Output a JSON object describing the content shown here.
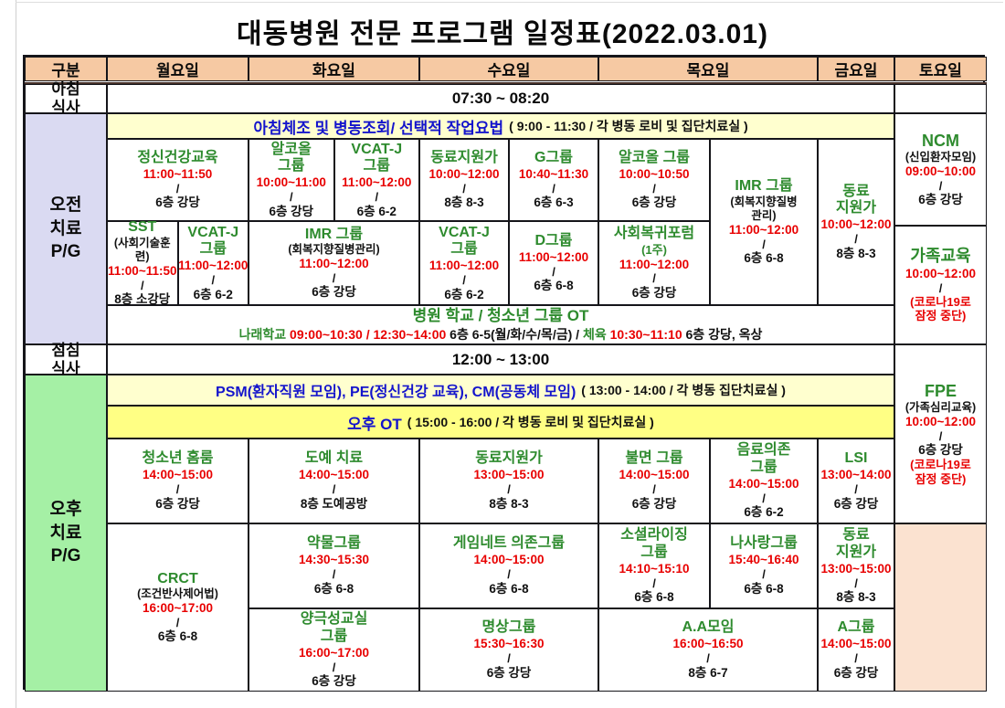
{
  "title": "대동병원 전문 프로그램 일정표(2022.03.01)",
  "header": {
    "category": "구분",
    "days": {
      "mon": "월요일",
      "tue": "화요일",
      "wed": "수요일",
      "thu": "목요일",
      "fri": "금요일",
      "sat": "토요일"
    }
  },
  "colors": {
    "program_green": "#2e8b2e",
    "time_red": "#e80000",
    "banner_blue": "#1414cc",
    "header_peach": "#f6c9a3",
    "saturday_peach": "#fbe2d0",
    "am_lavender": "#dadaf2",
    "pm_green": "#a5f0a5",
    "banner_pale_yellow": "#ffffcf",
    "ot_yellow": "#ffff84"
  },
  "meals": {
    "breakfast": {
      "label": "아침\n식사",
      "time": "07:30  ~  08:20"
    },
    "lunch": {
      "label": "점심\n식사",
      "time": "12:00  ~  13:00"
    }
  },
  "morning": {
    "label": "오전\n치료\nP/G",
    "banner_main": "아침체조 및 병동조회/ 선택적 작업요법",
    "banner_info": "( 9:00 - 11:30 / 각 병동 로비 및 집단치료실 )",
    "r1": {
      "mon": {
        "name": "정신건강교육",
        "time": "11:00~11:50",
        "loc": "6층 강당"
      },
      "tue_l": {
        "name": "알코올\n그룹",
        "time": "10:00~11:00",
        "loc": "6층 강당"
      },
      "tue_r": {
        "name": "VCAT-J\n그룹",
        "time": "11:00~12:00",
        "loc": "6층 6-2"
      },
      "wed_l": {
        "name": "동료지원가",
        "time": "10:00~12:00",
        "loc": "8층 8-3"
      },
      "wed_r": {
        "name": "G그룹",
        "time": "10:40~11:30",
        "loc": "6층 6-3"
      },
      "thu_l": {
        "name": "알코올 그룹",
        "time": "10:00~10:50",
        "loc": "6층 강당"
      },
      "thu_r": {
        "name": "IMR 그룹",
        "sub": "(회복지향질병\n관리)",
        "time": "11:00~12:00",
        "loc": "6층 6-8"
      },
      "fri": {
        "name": "동료\n지원가",
        "time": "10:00~12:00",
        "loc": "8층 8-3"
      }
    },
    "r2": {
      "mon_l": {
        "name": "SST",
        "sub": "(사회기술훈련)",
        "time": "11:00~11:50",
        "loc": "8층 소강당"
      },
      "mon_r": {
        "name": "VCAT-J\n그룹",
        "time": "11:00~12:00",
        "loc": "6층 6-2"
      },
      "tue": {
        "name": "IMR 그룹",
        "sub": "(회복지향질병관리)",
        "time": "11:00~12:00",
        "loc": "6층 강당"
      },
      "wed_l": {
        "name": "VCAT-J\n그룹",
        "time": "11:00~12:00",
        "loc": "6층 6-2"
      },
      "wed_r": {
        "name": "D그룹",
        "time": "11:00~12:00",
        "loc": "6층 6-8"
      },
      "thu_l": {
        "name": "사회복귀포럼",
        "subg": "(1주)",
        "time": "11:00~12:00",
        "loc": "6층 강당"
      }
    },
    "school": {
      "line1": "병원 학교 / 청소년 그룹 OT",
      "line2": [
        {
          "t": "나래학교 ",
          "c": "g"
        },
        {
          "t": "09:00~10:30 / 12:30~14:00",
          "c": "r"
        },
        {
          "t": " 6층 6-5(월/화/수/목/금) /  ",
          "c": "k"
        },
        {
          "t": "체육 ",
          "c": "g"
        },
        {
          "t": "10:30~11:10",
          "c": "r"
        },
        {
          "t": " 6층 강당, 옥상",
          "c": "k"
        }
      ]
    }
  },
  "afternoon": {
    "label": "오후\n치료\nP/G",
    "psm_main": "PSM(환자직원 모임), PE(정신건강 교육), CM(공동체 모임)",
    "psm_info": "( 13:00 - 14:00 / 각 병동 집단치료실 )",
    "ot_main": "오후 OT",
    "ot_info": "( 15:00 - 16:00 / 각 병동 로비 및 집단치료실 )",
    "r1": {
      "mon": {
        "name": "청소년 홈룸",
        "time": "14:00~15:00",
        "loc": "6층 강당"
      },
      "tue": {
        "name": "도예 치료",
        "time": "14:00~15:00",
        "loc": "8층 도예공방"
      },
      "wed": {
        "name": "동료지원가",
        "time": "13:00~15:00",
        "loc": "8층 8-3"
      },
      "thu_l": {
        "name": "불면 그룹",
        "time": "14:00~15:00",
        "loc": "6층 강당"
      },
      "thu_r": {
        "name": "음료의존\n그룹",
        "time": "14:00~15:00",
        "loc": "6층 6-2"
      },
      "fri": {
        "name": "LSI",
        "time": "13:00~14:00",
        "loc": "6층 강당"
      }
    },
    "r2": {
      "mon": {
        "name": "CRCT",
        "sub": "(조건반사제어법)",
        "time": "16:00~17:00",
        "loc": "6층 6-8"
      },
      "tue": {
        "name": "약물그룹",
        "time": "14:30~15:30",
        "loc": "6층 6-8"
      },
      "wed": {
        "name": "게임네트 의존그룹",
        "time": "14:00~15:00",
        "loc": "6층 6-8"
      },
      "thu_l": {
        "name": "소셜라이징\n그룹",
        "time": "14:10~15:10",
        "loc": "6층 6-8"
      },
      "thu_r": {
        "name": "나사랑그룹",
        "time": "15:40~16:40",
        "loc": "6층 6-8"
      },
      "fri": {
        "name": "동료\n지원가",
        "time": "13:00~15:00",
        "loc": "8층 8-3"
      }
    },
    "r3": {
      "tue": {
        "name": "양극성교실\n그룹",
        "time": "16:00~17:00",
        "loc": "6층 강당"
      },
      "wed": {
        "name": "명상그룹",
        "time": "15:30~16:30",
        "loc": "6층 강당"
      },
      "thu": {
        "name": "A.A모임",
        "time": "16:00~16:50",
        "loc": "8층 6-7"
      },
      "fri": {
        "name": "A그룹",
        "time": "14:00~15:00",
        "loc": "6층 강당"
      }
    }
  },
  "saturday": {
    "ncm": {
      "name": "NCM",
      "sub": "(신입환자모임)",
      "time": "09:00~10:00",
      "loc": "6층 강당"
    },
    "family": {
      "name": "가족교육",
      "time": "10:00~12:00",
      "note": "(코로나19로\n잠정 중단)"
    },
    "fpe": {
      "name": "FPE",
      "sub": "(가족심리교육)",
      "time": "10:00~12:00",
      "loc": "6층 강당",
      "note": "(코로나19로\n잠정 중단)"
    }
  }
}
